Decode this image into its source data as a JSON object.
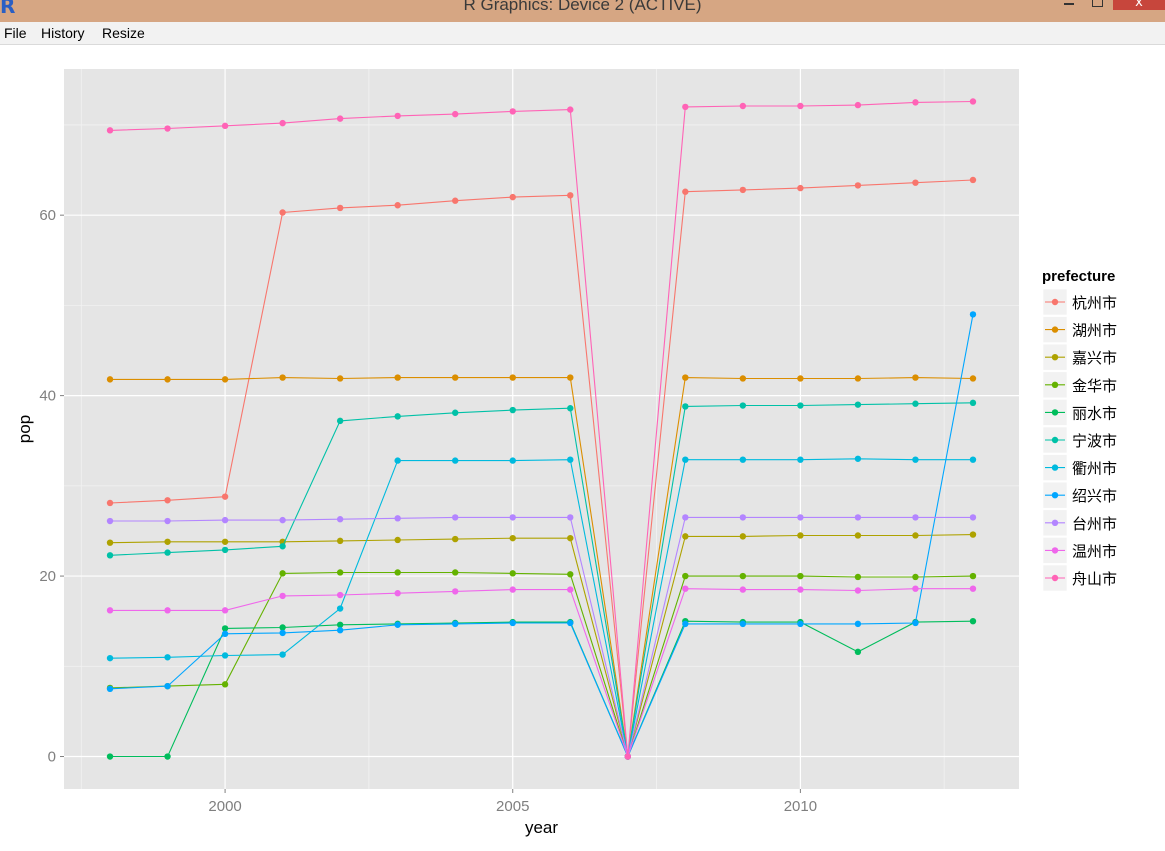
{
  "window": {
    "title": "R Graphics: Device 2 (ACTIVE)",
    "logo": "R",
    "close_glyph": "x"
  },
  "menu": {
    "items": [
      "File",
      "History",
      "Resize"
    ]
  },
  "chart_data": {
    "type": "line",
    "xlabel": "year",
    "ylabel": "pop",
    "xlim": [
      1997.2,
      2013.8
    ],
    "ylim": [
      -3.6,
      76.2
    ],
    "xticks": [
      2000,
      2005,
      2010
    ],
    "yticks": [
      0,
      20,
      40,
      60
    ],
    "grid": true,
    "legend": {
      "title": "prefecture",
      "placement": "right"
    },
    "x": [
      1998,
      1999,
      2000,
      2001,
      2002,
      2003,
      2004,
      2005,
      2006,
      2007,
      2008,
      2009,
      2010,
      2011,
      2012,
      2013
    ],
    "series": [
      {
        "name": "杭州市",
        "color": "#F8766D",
        "values": [
          28.1,
          28.4,
          28.8,
          60.3,
          60.8,
          61.1,
          61.6,
          62.0,
          62.2,
          0,
          62.6,
          62.8,
          63.0,
          63.3,
          63.6,
          63.9
        ]
      },
      {
        "name": "湖州市",
        "color": "#DB8E00",
        "values": [
          41.8,
          41.8,
          41.8,
          42.0,
          41.9,
          42.0,
          42.0,
          42.0,
          42.0,
          0,
          42.0,
          41.9,
          41.9,
          41.9,
          42.0,
          41.9
        ]
      },
      {
        "name": "嘉兴市",
        "color": "#AEA200",
        "values": [
          23.7,
          23.8,
          23.8,
          23.8,
          23.9,
          24.0,
          24.1,
          24.2,
          24.2,
          0,
          24.4,
          24.4,
          24.5,
          24.5,
          24.5,
          24.6
        ]
      },
      {
        "name": "金华市",
        "color": "#64B200",
        "values": [
          7.6,
          7.8,
          8.0,
          20.3,
          20.4,
          20.4,
          20.4,
          20.3,
          20.2,
          0,
          20.0,
          20.0,
          20.0,
          19.9,
          19.9,
          20.0
        ]
      },
      {
        "name": "丽水市",
        "color": "#00BD5C",
        "values": [
          0,
          0,
          14.2,
          14.3,
          14.6,
          14.7,
          14.8,
          14.9,
          14.9,
          0,
          15.0,
          14.9,
          14.9,
          11.6,
          14.9,
          15.0
        ]
      },
      {
        "name": "宁波市",
        "color": "#00C1A7",
        "values": [
          22.3,
          22.6,
          22.9,
          23.3,
          37.2,
          37.7,
          38.1,
          38.4,
          38.6,
          0,
          38.8,
          38.9,
          38.9,
          39.0,
          39.1,
          39.2
        ]
      },
      {
        "name": "衢州市",
        "color": "#00BADE",
        "values": [
          10.9,
          11.0,
          11.2,
          11.3,
          16.4,
          32.8,
          32.8,
          32.8,
          32.9,
          0,
          32.9,
          32.9,
          32.9,
          33.0,
          32.9,
          32.9
        ]
      },
      {
        "name": "绍兴市",
        "color": "#00A6FF",
        "values": [
          7.5,
          7.8,
          13.6,
          13.7,
          14.0,
          14.6,
          14.7,
          14.8,
          14.8,
          0,
          14.7,
          14.7,
          14.7,
          14.7,
          14.8,
          49.0
        ]
      },
      {
        "name": "台州市",
        "color": "#B385FF",
        "values": [
          26.1,
          26.1,
          26.2,
          26.2,
          26.3,
          26.4,
          26.5,
          26.5,
          26.5,
          0,
          26.5,
          26.5,
          26.5,
          26.5,
          26.5,
          26.5
        ]
      },
      {
        "name": "温州市",
        "color": "#EF67EB",
        "values": [
          16.2,
          16.2,
          16.2,
          17.8,
          17.9,
          18.1,
          18.3,
          18.5,
          18.5,
          0,
          18.6,
          18.5,
          18.5,
          18.4,
          18.6,
          18.6
        ]
      },
      {
        "name": "舟山市",
        "color": "#FF63B6",
        "values": [
          69.4,
          69.6,
          69.9,
          70.2,
          70.7,
          71.0,
          71.2,
          71.5,
          71.7,
          0,
          72.0,
          72.1,
          72.1,
          72.2,
          72.5,
          72.6
        ]
      }
    ]
  }
}
